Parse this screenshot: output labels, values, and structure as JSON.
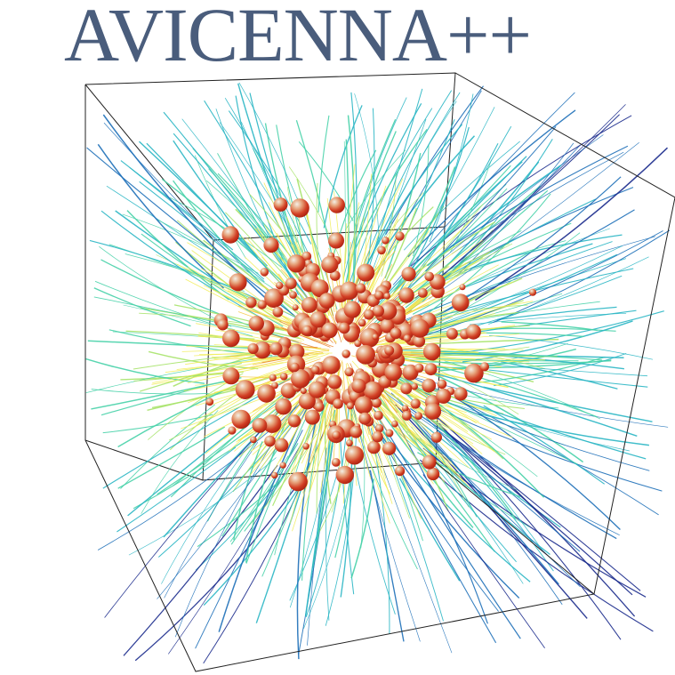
{
  "logo": {
    "title": "AVICENNA++",
    "color": "#4a5d7c"
  },
  "scene": {
    "description_colors": {
      "box_edges": "#1a1a1a",
      "streamline_palette": [
        "#1a2a8c",
        "#1d6fb8",
        "#2ab6c4",
        "#47d1a8",
        "#a7e36a",
        "#f1ec52",
        "#f6c63b",
        "#e8842b"
      ],
      "sphere_light": "#f3efe4",
      "sphere_mid": "#d8573a",
      "sphere_dark": "#b52616"
    }
  }
}
